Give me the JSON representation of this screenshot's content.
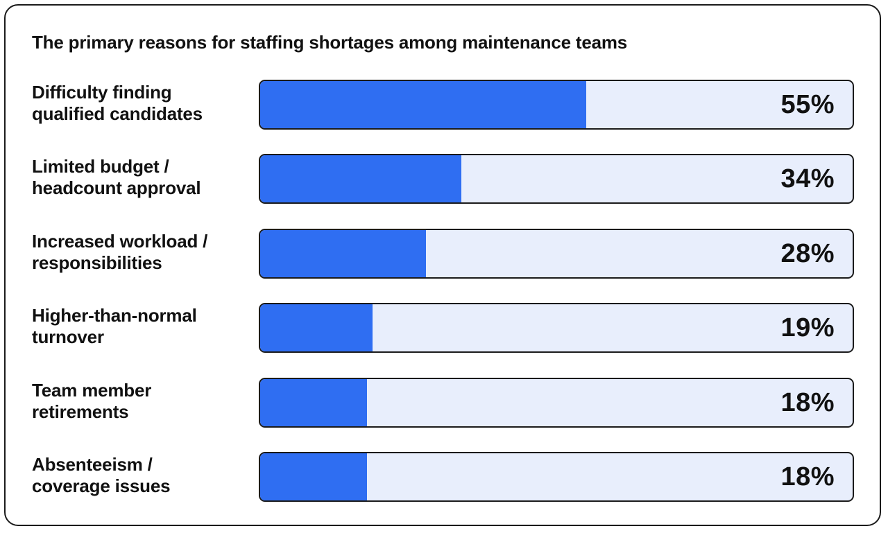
{
  "chart_data": {
    "type": "bar",
    "orientation": "horizontal",
    "title": "The primary reasons for staffing shortages among maintenance teams",
    "categories": [
      "Difficulty finding\nqualified candidates",
      "Limited budget /\nheadcount approval",
      "Increased workload /\nresponsibilities",
      "Higher-than-normal\nturnover",
      "Team member\nretirements",
      "Absenteeism /\ncoverage issues"
    ],
    "values": [
      55,
      34,
      28,
      19,
      18,
      18
    ],
    "value_labels": [
      "55%",
      "34%",
      "28%",
      "19%",
      "18%",
      "18%"
    ],
    "xlim": [
      0,
      100
    ],
    "unit": "%",
    "grid": false,
    "legend": "none",
    "colors": {
      "bar_fill": "#2f6ef2",
      "bar_track": "#e8eefc",
      "border": "#1a1a1a"
    }
  }
}
